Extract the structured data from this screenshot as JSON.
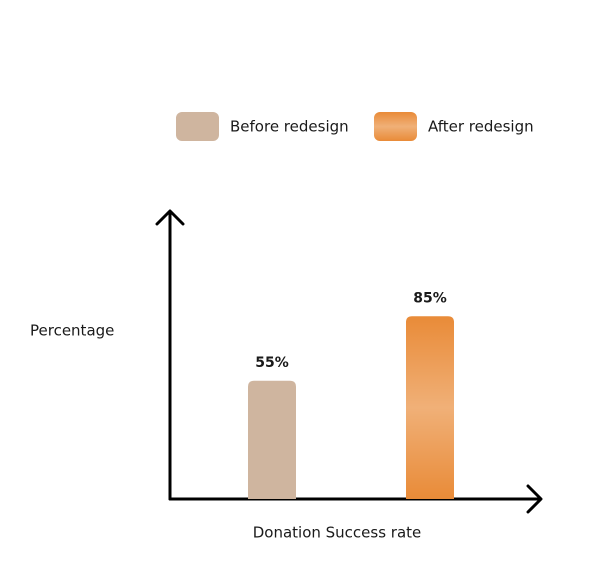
{
  "chart_data": {
    "type": "bar",
    "x_label": "Donation Success rate",
    "y_label": "Percentage",
    "categories": [
      null
    ],
    "series": [
      {
        "name": "Before redesign",
        "color": "#cfb59f",
        "values": [
          55
        ],
        "value_labels": [
          "55%"
        ]
      },
      {
        "name": "After redesign",
        "color": "#e98b38",
        "values": [
          85
        ],
        "value_labels": [
          "85%"
        ]
      }
    ],
    "ylim": [
      0,
      100
    ]
  }
}
